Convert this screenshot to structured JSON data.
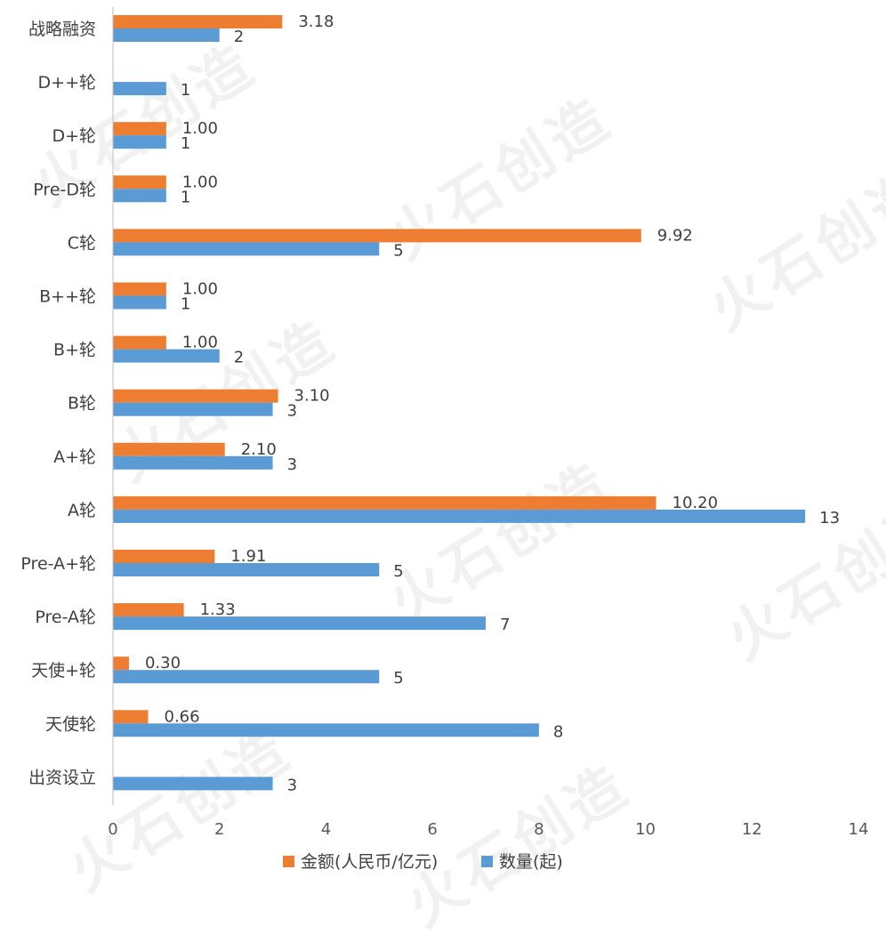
{
  "watermark_text": "火石创造",
  "chart_data": {
    "type": "bar",
    "orientation": "horizontal",
    "categories": [
      "战略融资",
      "D++轮",
      "D+轮",
      "Pre-D轮",
      "C轮",
      "B++轮",
      "B+轮",
      "B轮",
      "A+轮",
      "A轮",
      "Pre-A+轮",
      "Pre-A轮",
      "天使+轮",
      "天使轮",
      "出资设立"
    ],
    "series": [
      {
        "name": "金额(人民币/亿元)",
        "color": "#ED7D31",
        "values": [
          3.18,
          null,
          1.0,
          1.0,
          9.92,
          1.0,
          1.0,
          3.1,
          2.1,
          10.2,
          1.91,
          1.33,
          0.3,
          0.66,
          null
        ],
        "labels": [
          "3.18",
          "",
          "1.00",
          "1.00",
          "9.92",
          "1.00",
          "1.00",
          "3.10",
          "2.10",
          "10.20",
          "1.91",
          "1.33",
          "0.30",
          "0.66",
          ""
        ]
      },
      {
        "name": "数量(起)",
        "color": "#5B9BD5",
        "values": [
          2,
          1,
          1,
          1,
          5,
          1,
          2,
          3,
          3,
          13,
          5,
          7,
          5,
          8,
          3
        ],
        "labels": [
          "2",
          "1",
          "1",
          "1",
          "5",
          "1",
          "2",
          "3",
          "3",
          "13",
          "5",
          "7",
          "5",
          "8",
          "3"
        ]
      }
    ],
    "xlim": [
      0,
      14
    ],
    "xticks": [
      "0",
      "2",
      "4",
      "6",
      "8",
      "10",
      "12",
      "14"
    ],
    "grid": false,
    "legend": "bottom"
  }
}
